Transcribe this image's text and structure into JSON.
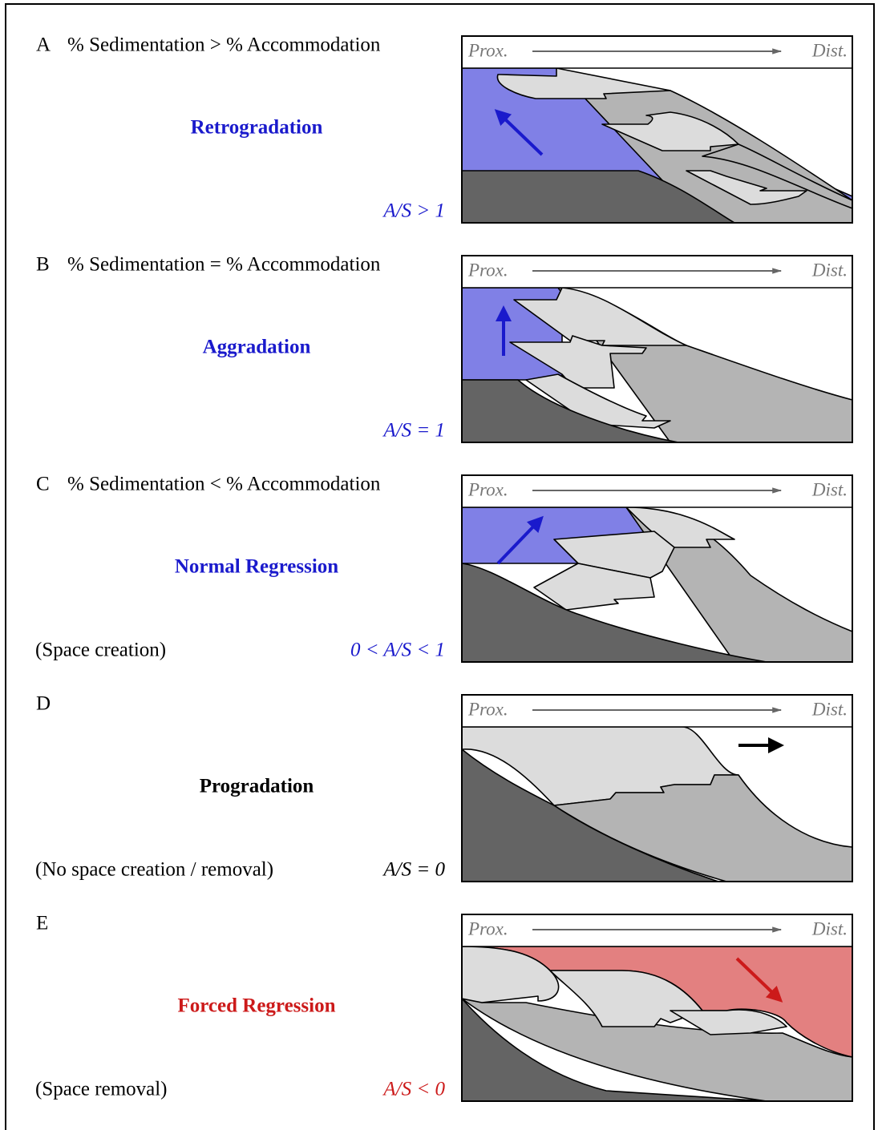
{
  "panels": [
    {
      "letter": "A",
      "condition": "% Sedimentation > % Accommodation",
      "process": "Retrogradation",
      "color": "#1a1acc",
      "ratio": "A/S > 1",
      "proximal": "Prox.",
      "distal": "Dist."
    },
    {
      "letter": "B",
      "condition": "% Sedimentation = % Accommodation",
      "process": "Aggradation",
      "color": "#1a1acc",
      "ratio": "A/S = 1",
      "proximal": "Prox.",
      "distal": "Dist."
    },
    {
      "letter": "C",
      "condition": "% Sedimentation < % Accommodation",
      "process": "Normal Regression",
      "color": "#1a1acc",
      "note": "(Space creation)",
      "ratio": "0 < A/S < 1",
      "proximal": "Prox.",
      "distal": "Dist."
    },
    {
      "letter": "D",
      "process": "Progradation",
      "color": "#000000",
      "note": "(No space creation / removal)",
      "ratio": "A/S = 0",
      "proximal": "Prox.",
      "distal": "Dist."
    },
    {
      "letter": "E",
      "process": "Forced Regression",
      "color": "#cc1a1a",
      "note": "(Space removal)",
      "ratio": "A/S < 0",
      "proximal": "Prox.",
      "distal": "Dist."
    }
  ]
}
